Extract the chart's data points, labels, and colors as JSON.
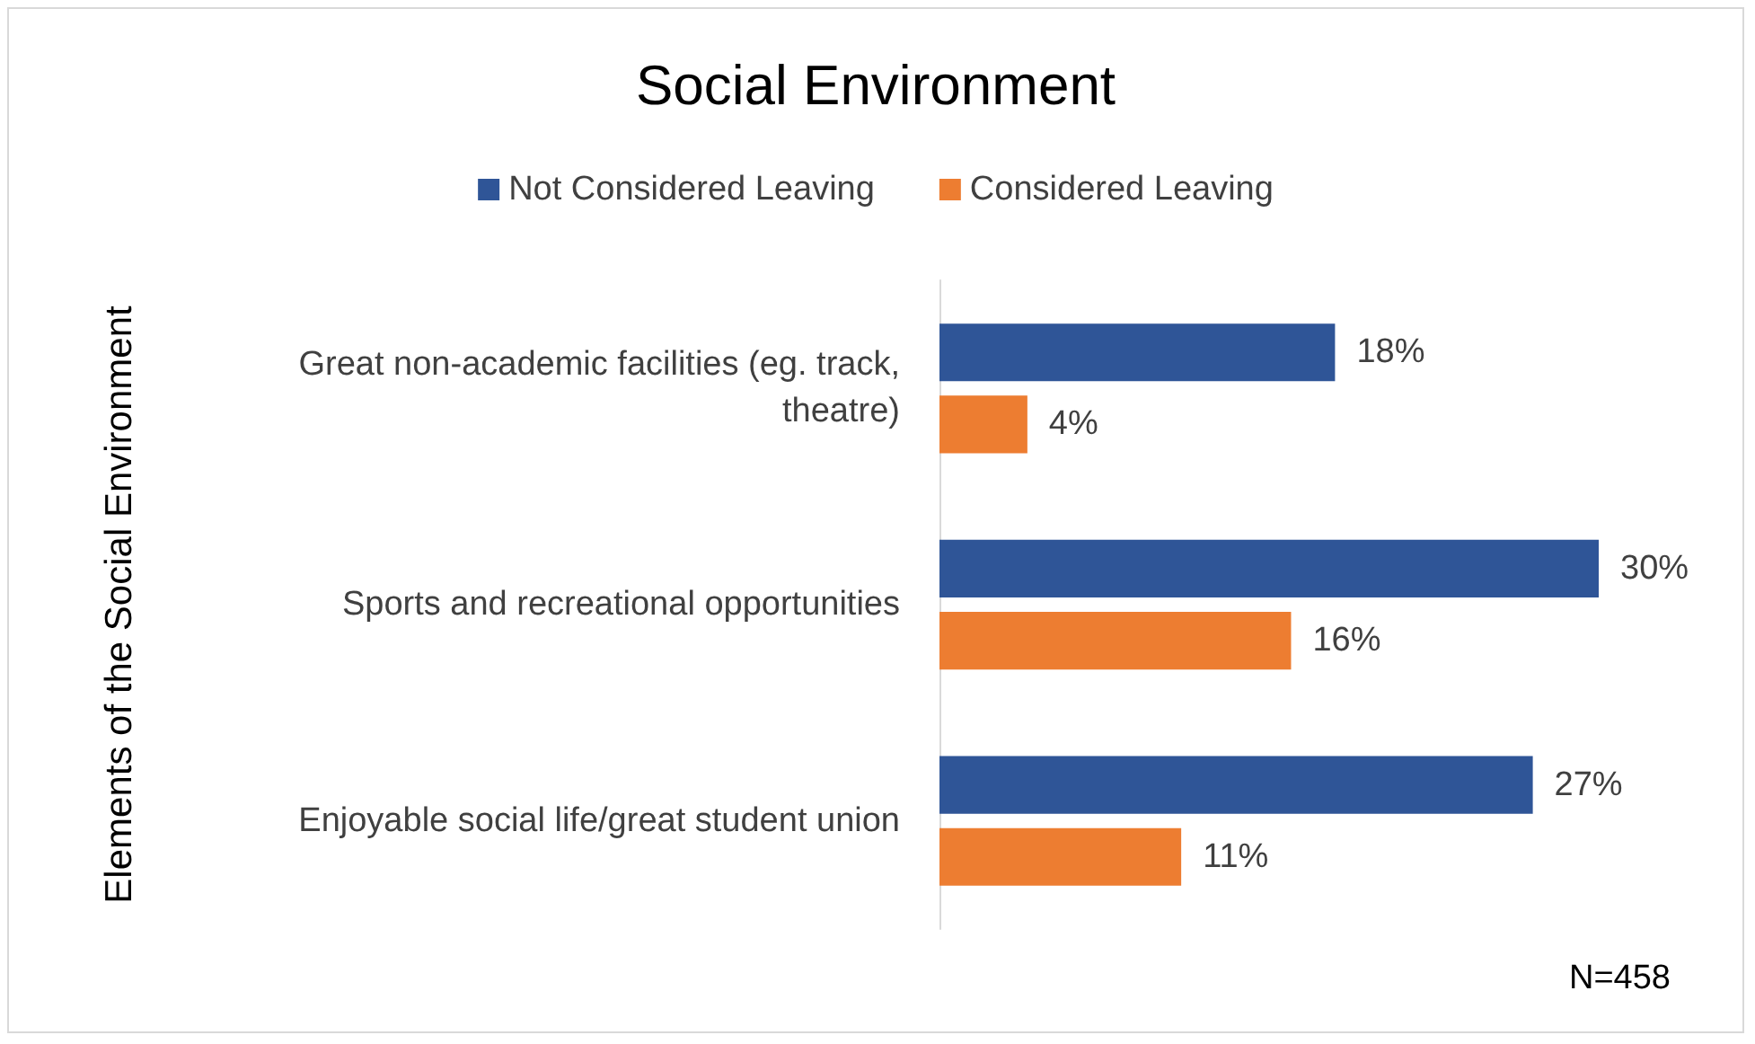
{
  "chart_data": {
    "type": "bar",
    "orientation": "horizontal",
    "title": "Social Environment",
    "ylabel": "Elements of the Social Environment",
    "categories": [
      "Great non-academic facilities (eg. track, theatre)",
      "Sports and recreational opportunities",
      "Enjoyable social life/great student union"
    ],
    "series": [
      {
        "name": "Not Considered Leaving",
        "color": "#2f5597",
        "values": [
          18,
          30,
          27
        ],
        "value_labels": [
          "18%",
          "30%",
          "27%"
        ]
      },
      {
        "name": "Considered Leaving",
        "color": "#ed7d31",
        "values": [
          4,
          16,
          11
        ],
        "value_labels": [
          "4%",
          "16%",
          "11%"
        ]
      }
    ],
    "legend": "top",
    "annotations": [
      "N=458"
    ]
  }
}
